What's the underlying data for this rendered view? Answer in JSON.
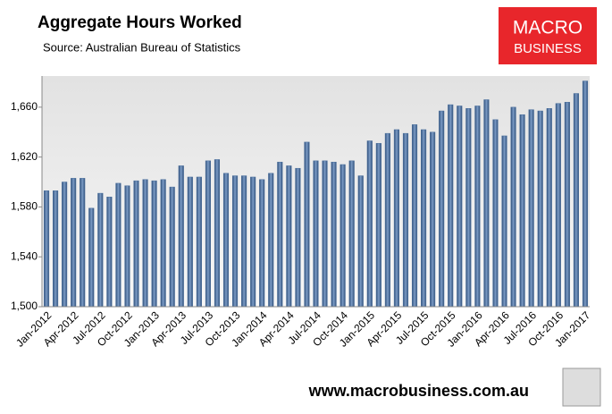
{
  "chart_data": {
    "type": "bar",
    "title": "Aggregate Hours Worked",
    "subtitle": "Source: Australian Bureau of Statistics",
    "logo": [
      "MACRO",
      "BUSINESS"
    ],
    "footer": "www.macrobusiness.com.au",
    "categories": [
      "Jan-2012",
      null,
      null,
      "Apr-2012",
      null,
      null,
      "Jul-2012",
      null,
      null,
      "Oct-2012",
      null,
      null,
      "Jan-2013",
      null,
      null,
      "Apr-2013",
      null,
      null,
      "Jul-2013",
      null,
      null,
      "Oct-2013",
      null,
      null,
      "Jan-2014",
      null,
      null,
      "Apr-2014",
      null,
      null,
      "Jul-2014",
      null,
      null,
      "Oct-2014",
      null,
      null,
      "Jan-2015",
      null,
      null,
      "Apr-2015",
      null,
      null,
      "Jul-2015",
      null,
      null,
      "Oct-2015",
      null,
      null,
      "Jan-2016",
      null,
      null,
      "Apr-2016",
      null,
      null,
      "Jul-2016",
      null,
      null,
      "Oct-2016",
      null,
      null,
      "Jan-2017"
    ],
    "values": [
      1593,
      1593,
      1600,
      1603,
      1603,
      1579,
      1591,
      1588,
      1599,
      1597,
      1601,
      1602,
      1601,
      1602,
      1596,
      1613,
      1604,
      1604,
      1617,
      1618,
      1607,
      1605,
      1605,
      1604,
      1602,
      1607,
      1616,
      1613,
      1611,
      1632,
      1617,
      1617,
      1616,
      1614,
      1617,
      1605,
      1633,
      1631,
      1639,
      1642,
      1639,
      1646,
      1642,
      1640,
      1657,
      1662,
      1661,
      1659,
      1661,
      1666,
      1650,
      1637,
      1660,
      1654,
      1658,
      1657,
      1659,
      1663,
      1664,
      1671,
      1681
    ],
    "color": "#4a6f9c",
    "ylim": [
      1500,
      1685
    ],
    "yticks": [
      {
        "value": 1500,
        "label": "1,500"
      },
      {
        "value": 1540,
        "label": "1,540"
      },
      {
        "value": 1580,
        "label": "1,580"
      },
      {
        "value": 1620,
        "label": "1,620"
      },
      {
        "value": 1660,
        "label": "1,660"
      }
    ],
    "grid": false
  }
}
